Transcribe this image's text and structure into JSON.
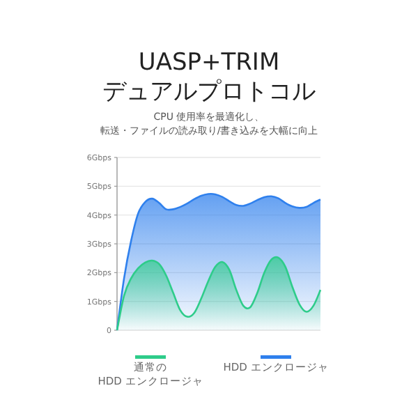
{
  "chart_data": {
    "type": "area",
    "title": "UASP+TRIM\nデュアルプロトコル",
    "subtitle": "CPU 使用率を最適化し、転送・ファイルの読み取り/書き込みを大幅に向上",
    "categories": [
      null,
      null,
      null,
      null,
      null,
      null,
      null,
      null,
      null,
      null,
      null,
      null,
      null,
      null,
      null,
      null,
      null,
      null,
      null,
      null,
      null,
      null,
      null,
      null,
      null,
      null,
      null,
      null,
      null,
      null
    ],
    "series": [
      {
        "name": "通常の\nHDD エンクロージャ",
        "color": "#2ecc8a",
        "values": [
          0,
          1.2,
          1.8,
          2.15,
          2.35,
          2.42,
          2.3,
          1.9,
          1.3,
          0.7,
          0.47,
          0.6,
          1.1,
          1.7,
          2.2,
          2.37,
          2.1,
          1.4,
          0.85,
          0.8,
          1.3,
          2.0,
          2.45,
          2.52,
          2.2,
          1.5,
          0.9,
          0.64,
          0.85,
          1.4
        ]
      },
      {
        "name": "HDD エンクロージャ",
        "color": "#2f80ed",
        "values": [
          0,
          1.8,
          3.1,
          4.05,
          4.45,
          4.57,
          4.42,
          4.2,
          4.2,
          4.28,
          4.4,
          4.55,
          4.67,
          4.73,
          4.72,
          4.63,
          4.48,
          4.35,
          4.32,
          4.4,
          4.52,
          4.62,
          4.65,
          4.58,
          4.42,
          4.3,
          4.25,
          4.28,
          4.42,
          4.54
        ]
      }
    ],
    "ylim": [
      0,
      6
    ],
    "yticks": [
      0,
      {
        "value": 1,
        "label": "1Gbps"
      },
      {
        "value": 2,
        "label": "2Gbps"
      },
      {
        "value": 3,
        "label": "3Gbps"
      },
      {
        "value": 4,
        "label": "4Gbps"
      },
      {
        "value": 5,
        "label": "5Gbps"
      },
      {
        "value": 6,
        "label": "6Gbps"
      }
    ],
    "grid": "y",
    "legend": "bottom"
  }
}
